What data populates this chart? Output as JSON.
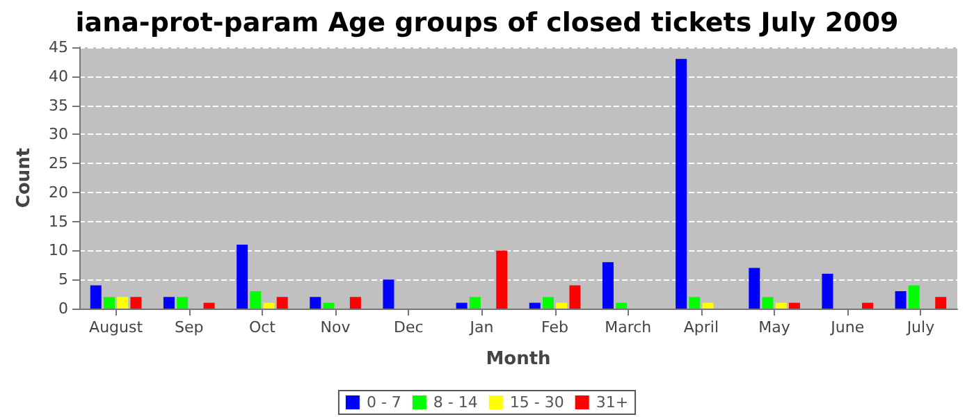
{
  "chart_data": {
    "type": "bar",
    "title": "iana-prot-param Age groups of closed tickets July 2009",
    "xlabel": "Month",
    "ylabel": "Count",
    "categories": [
      "August",
      "Sep",
      "Oct",
      "Nov",
      "Dec",
      "Jan",
      "Feb",
      "March",
      "April",
      "May",
      "June",
      "July"
    ],
    "series": [
      {
        "name": "0 - 7",
        "color": "#0000ff",
        "values": [
          4,
          2,
          11,
          2,
          5,
          1,
          1,
          8,
          43,
          7,
          6,
          3
        ]
      },
      {
        "name": "8 - 14",
        "color": "#00ff00",
        "values": [
          2,
          2,
          3,
          1,
          0,
          2,
          2,
          1,
          2,
          2,
          0,
          4
        ]
      },
      {
        "name": "15 - 30",
        "color": "#ffff00",
        "values": [
          2,
          0,
          1,
          0,
          0,
          0,
          1,
          0,
          1,
          1,
          0,
          0
        ]
      },
      {
        "name": "31+",
        "color": "#ff0000",
        "values": [
          2,
          1,
          2,
          2,
          0,
          10,
          4,
          0,
          0,
          1,
          1,
          2
        ]
      }
    ],
    "ylim": [
      0,
      45
    ],
    "yticks": [
      0,
      5,
      10,
      15,
      20,
      25,
      30,
      35,
      40,
      45
    ],
    "grid": "y",
    "legend": "bottom"
  }
}
